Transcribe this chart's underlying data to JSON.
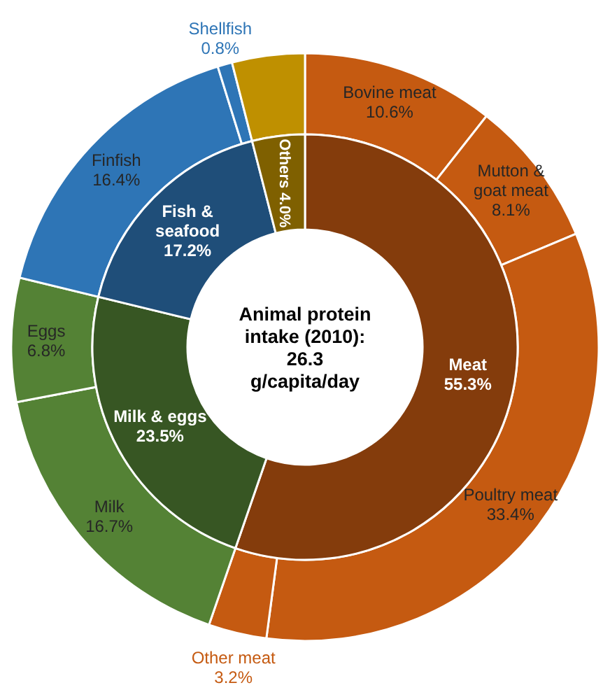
{
  "chart_data": [
    {
      "type": "donut",
      "title": "Animal protein intake (2010): 26.3 g/capita/day",
      "categories": [
        "Meat",
        "Milk & eggs",
        "Fish & seafood",
        "Others"
      ],
      "values": [
        55.3,
        23.5,
        17.2,
        4.0
      ],
      "colors": [
        "#843c0c",
        "#375623",
        "#1f4e79",
        "#7f6000"
      ],
      "value_labels": [
        "55.3%",
        "23.5%",
        "17.2%",
        "4.0%"
      ]
    },
    {
      "type": "donut",
      "categories": [
        "Bovine meat",
        "Mutton & goat meat",
        "Poultry meat",
        "Other meat",
        "Milk",
        "Eggs",
        "Finfish",
        "Shellfish",
        null
      ],
      "values": [
        10.6,
        8.1,
        33.4,
        3.2,
        16.7,
        6.8,
        16.4,
        0.8,
        4.0
      ],
      "colors": [
        "#c55a11",
        "#c55a11",
        "#c55a11",
        "#c55a11",
        "#548235",
        "#548235",
        "#2e75b6",
        "#2e75b6",
        "#bf9000"
      ],
      "value_labels": [
        "10.6%",
        "8.1%",
        "33.4%",
        "3.2%",
        "16.7%",
        "6.8%",
        "16.4%",
        "0.8%",
        null
      ]
    }
  ]
}
